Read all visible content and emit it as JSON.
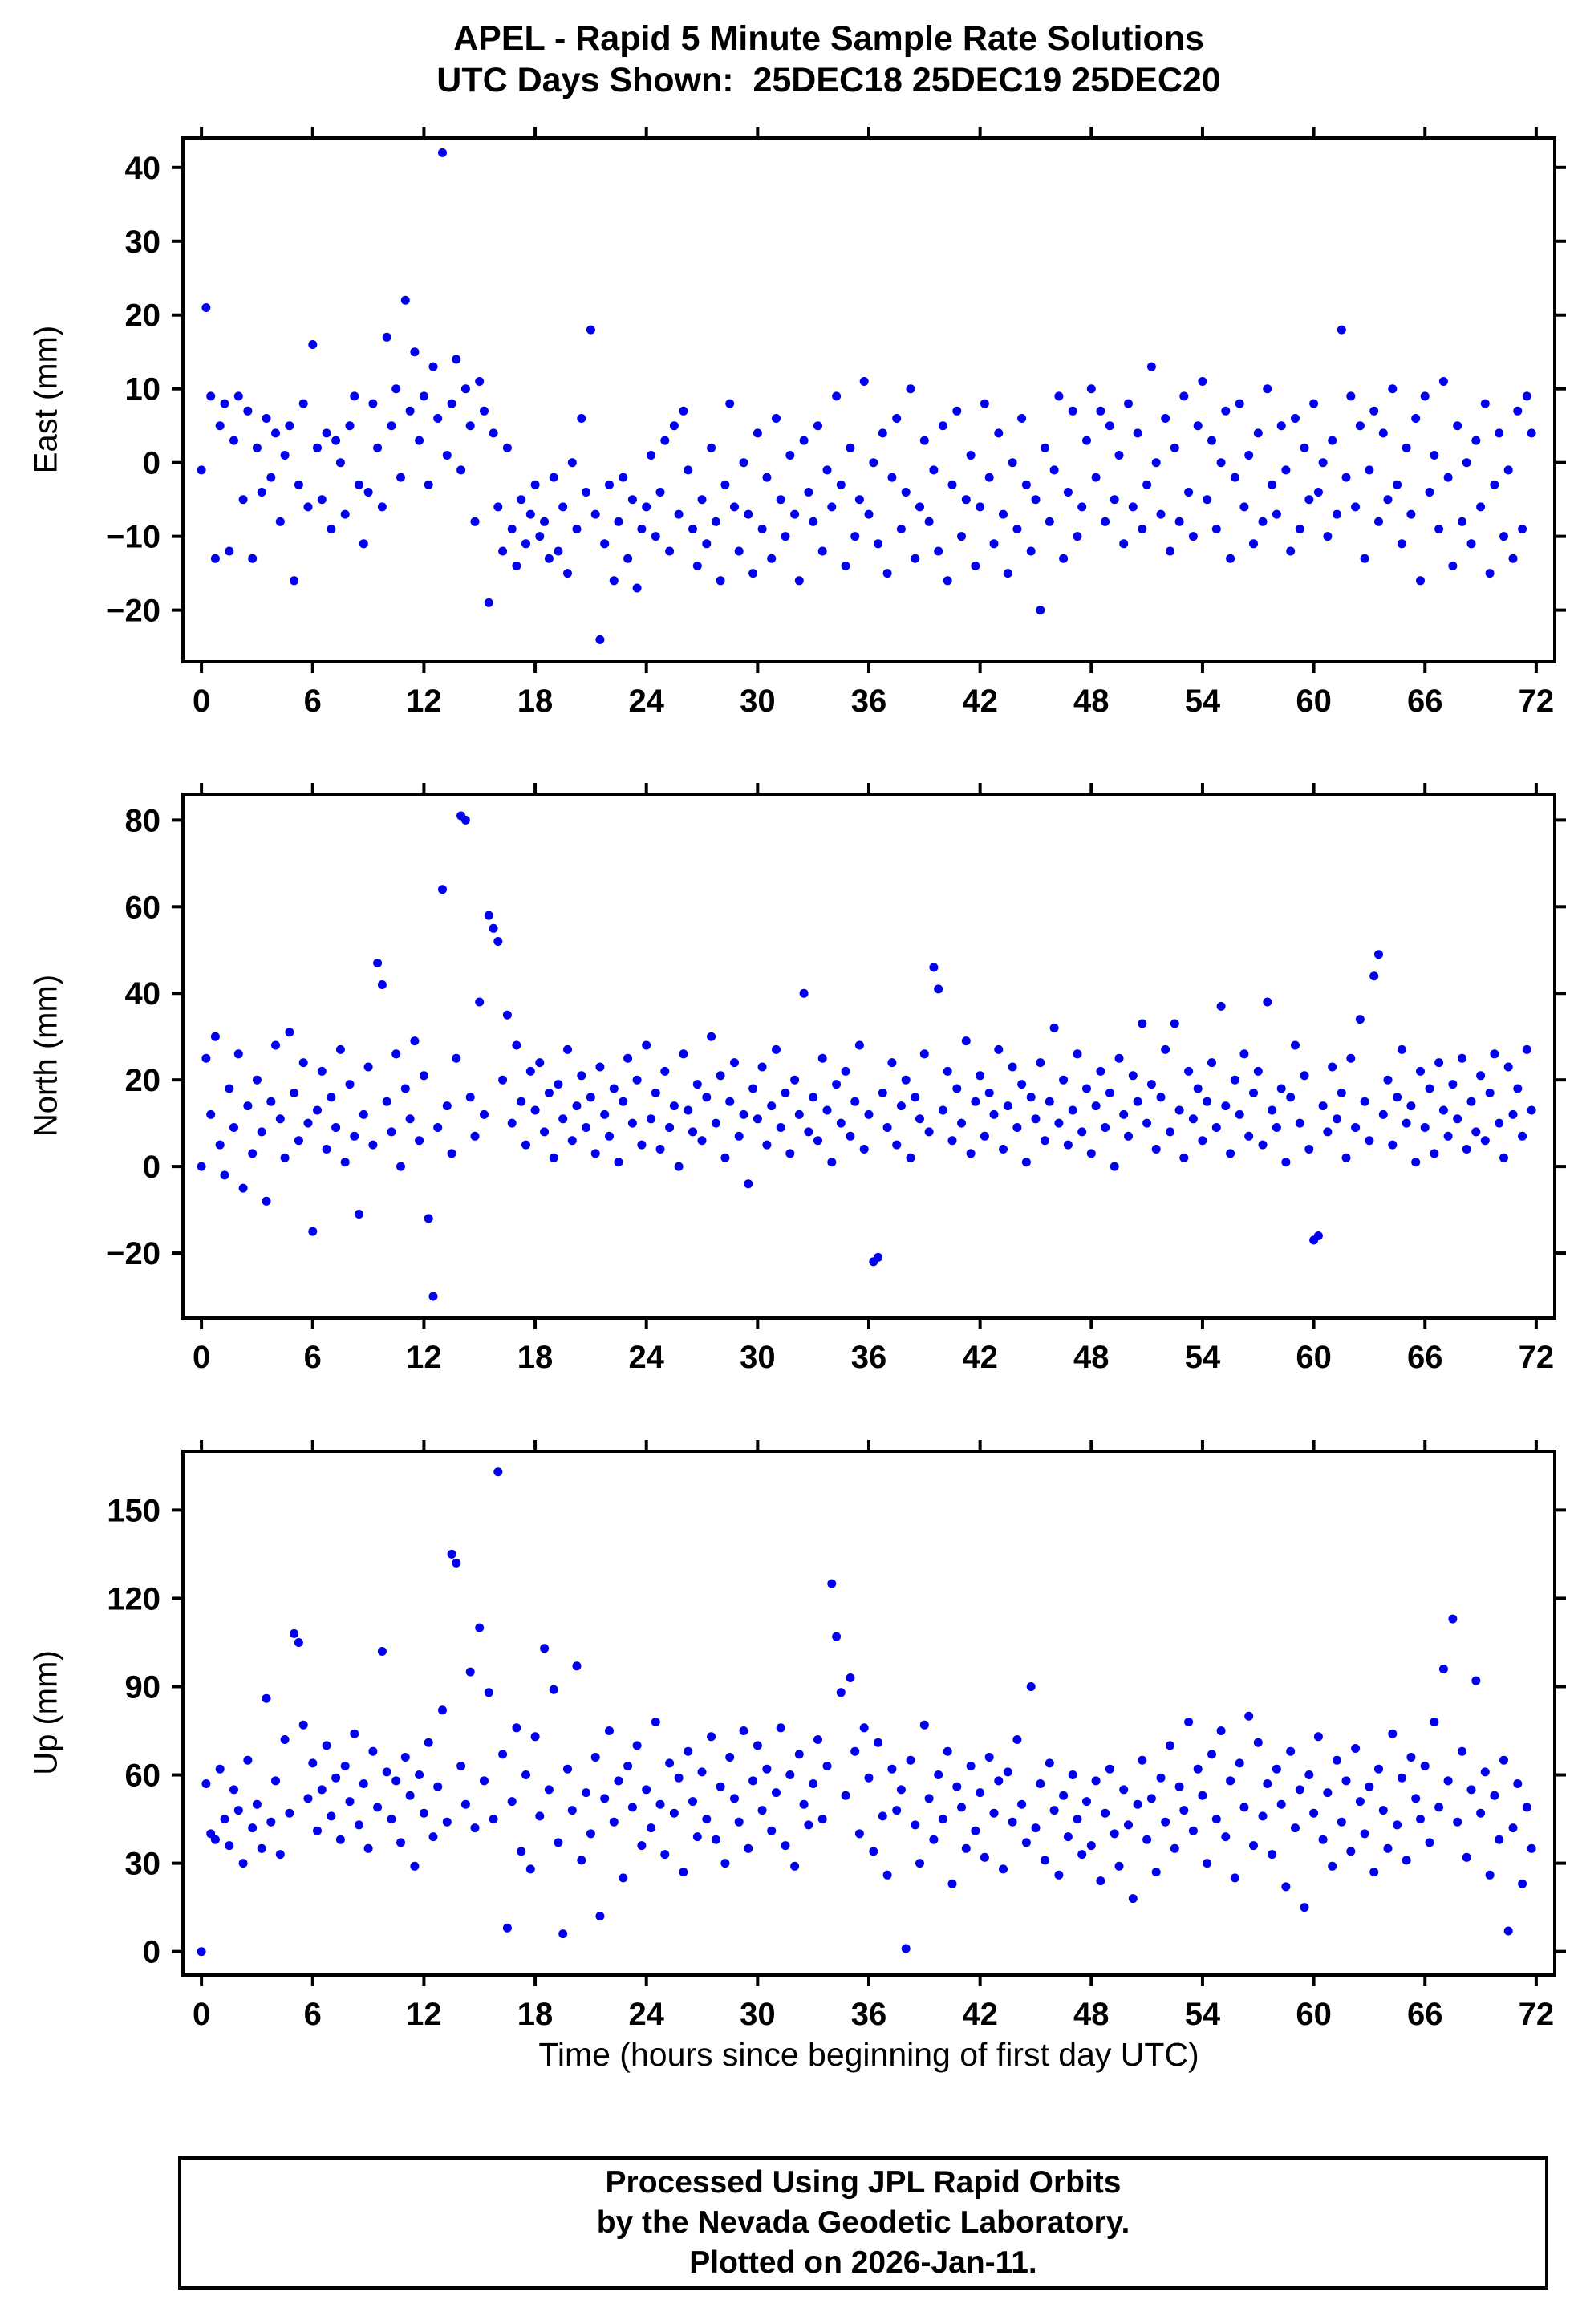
{
  "title": {
    "line1": "APEL - Rapid 5 Minute Sample Rate Solutions",
    "line2": "UTC Days Shown:  25DEC18 25DEC19 25DEC20"
  },
  "footer": {
    "lines": [
      "Processed Using JPL Rapid Orbits",
      "by the Nevada Geodetic Laboratory.",
      "Plotted on 2026-Jan-11."
    ]
  },
  "chart_data": {
    "type": "scatter",
    "title": "APEL - Rapid 5 Minute Sample Rate Solutions",
    "subtitle": "UTC Days Shown:  25DEC18 25DEC19 25DEC20",
    "xlabel": "Time (hours since beginning of first day UTC)",
    "point_color": "#0000ee",
    "grid": false,
    "legend": "none",
    "x": {
      "min": -1,
      "max": 73,
      "ticks": [
        0,
        6,
        12,
        18,
        24,
        30,
        36,
        42,
        48,
        54,
        60,
        66,
        72
      ]
    },
    "panels": [
      {
        "name": "east",
        "ylabel": "East (mm)",
        "ymin": -27,
        "ymax": 44,
        "yticks": [
          -20,
          -10,
          0,
          10,
          20,
          30,
          40
        ],
        "x_start": 0,
        "x_step": 0.25,
        "y": [
          -1,
          21,
          9,
          -13,
          5,
          8,
          -12,
          3,
          9,
          -5,
          7,
          -13,
          2,
          -4,
          6,
          -2,
          4,
          -8,
          1,
          5,
          -16,
          -3,
          8,
          -6,
          16,
          2,
          -5,
          4,
          -9,
          3,
          0,
          -7,
          5,
          9,
          -3,
          -11,
          -4,
          8,
          2,
          -6,
          17,
          5,
          10,
          -2,
          22,
          7,
          15,
          3,
          9,
          -3,
          13,
          6,
          42,
          1,
          8,
          14,
          -1,
          10,
          5,
          -8,
          11,
          7,
          -19,
          4,
          -6,
          -12,
          2,
          -9,
          -14,
          -5,
          -11,
          -7,
          -3,
          -10,
          -8,
          -13,
          -2,
          -12,
          -6,
          -15,
          0,
          -9,
          6,
          -4,
          18,
          -7,
          -24,
          -11,
          -3,
          -16,
          -8,
          -2,
          -13,
          -5,
          -17,
          -9,
          -6,
          1,
          -10,
          -4,
          3,
          -12,
          5,
          -7,
          7,
          -1,
          -9,
          -14,
          -5,
          -11,
          2,
          -8,
          -16,
          -3,
          8,
          -6,
          -12,
          0,
          -7,
          -15,
          4,
          -9,
          -2,
          -13,
          6,
          -5,
          -10,
          1,
          -7,
          -16,
          3,
          -4,
          -8,
          5,
          -12,
          -1,
          -6,
          9,
          -3,
          -14,
          2,
          -10,
          -5,
          11,
          -7,
          0,
          -11,
          4,
          -15,
          -2,
          6,
          -9,
          -4,
          10,
          -13,
          -6,
          3,
          -8,
          -1,
          -12,
          5,
          -16,
          -3,
          7,
          -10,
          -5,
          1,
          -14,
          -6,
          8,
          -2,
          -11,
          4,
          -7,
          -15,
          0,
          -9,
          6,
          -3,
          -12,
          -5,
          -20,
          2,
          -8,
          -1,
          9,
          -13,
          -4,
          7,
          -10,
          -6,
          3,
          10,
          -2,
          7,
          -8,
          5,
          -5,
          1,
          -11,
          8,
          -6,
          4,
          -9,
          -3,
          13,
          0,
          -7,
          6,
          -12,
          2,
          -8,
          9,
          -4,
          -10,
          5,
          11,
          -5,
          3,
          -9,
          0,
          7,
          -13,
          -2,
          8,
          -6,
          1,
          -11,
          4,
          -8,
          10,
          -3,
          -7,
          5,
          -1,
          -12,
          6,
          -9,
          2,
          -5,
          8,
          -4,
          0,
          -10,
          3,
          -7,
          18,
          -2,
          9,
          -6,
          5,
          -13,
          -1,
          7,
          -8,
          4,
          -5,
          10,
          -3,
          -11,
          2,
          -7,
          6,
          -16,
          9,
          -4,
          1,
          -9,
          11,
          -2,
          -14,
          5,
          -8,
          0,
          -11,
          3,
          -6,
          8,
          -15,
          -3,
          4,
          -10,
          -1,
          -13,
          7,
          -9,
          9,
          4
        ]
      },
      {
        "name": "north",
        "ylabel": "North (mm)",
        "ymin": -35,
        "ymax": 86,
        "yticks": [
          -20,
          0,
          20,
          40,
          60,
          80
        ],
        "x_start": 0,
        "x_step": 0.25,
        "y": [
          0,
          25,
          12,
          30,
          5,
          -2,
          18,
          9,
          26,
          -5,
          14,
          3,
          20,
          8,
          -8,
          15,
          28,
          11,
          2,
          31,
          17,
          6,
          24,
          10,
          -15,
          13,
          22,
          4,
          16,
          9,
          27,
          1,
          19,
          7,
          -11,
          12,
          23,
          5,
          47,
          42,
          15,
          8,
          26,
          0,
          18,
          11,
          29,
          6,
          21,
          -12,
          -30,
          9,
          64,
          14,
          3,
          25,
          81,
          80,
          16,
          7,
          38,
          12,
          58,
          55,
          52,
          20,
          35,
          10,
          28,
          15,
          5,
          22,
          13,
          24,
          8,
          17,
          2,
          19,
          11,
          27,
          6,
          14,
          21,
          9,
          16,
          3,
          23,
          12,
          7,
          18,
          1,
          15,
          25,
          10,
          20,
          5,
          28,
          11,
          17,
          4,
          22,
          9,
          14,
          0,
          26,
          13,
          8,
          19,
          6,
          16,
          30,
          10,
          21,
          2,
          15,
          24,
          7,
          12,
          -4,
          18,
          11,
          23,
          5,
          14,
          27,
          9,
          17,
          3,
          20,
          12,
          40,
          8,
          16,
          6,
          25,
          13,
          1,
          19,
          10,
          22,
          7,
          15,
          28,
          4,
          12,
          -22,
          -21,
          17,
          9,
          24,
          5,
          14,
          20,
          2,
          16,
          11,
          26,
          8,
          46,
          41,
          13,
          22,
          6,
          18,
          10,
          29,
          3,
          15,
          21,
          7,
          17,
          12,
          27,
          4,
          14,
          23,
          9,
          19,
          1,
          16,
          11,
          24,
          6,
          15,
          32,
          10,
          20,
          5,
          13,
          26,
          8,
          18,
          3,
          14,
          22,
          9,
          17,
          0,
          25,
          12,
          7,
          21,
          15,
          33,
          10,
          19,
          4,
          16,
          27,
          8,
          33,
          13,
          2,
          22,
          11,
          18,
          6,
          15,
          24,
          9,
          37,
          14,
          3,
          20,
          12,
          26,
          7,
          17,
          22,
          5,
          38,
          13,
          9,
          18,
          1,
          16,
          28,
          10,
          21,
          4,
          -17,
          -16,
          14,
          8,
          23,
          11,
          17,
          2,
          25,
          9,
          34,
          15,
          6,
          44,
          49,
          12,
          20,
          5,
          16,
          27,
          10,
          14,
          1,
          22,
          9,
          18,
          3,
          24,
          13,
          7,
          19,
          11,
          25,
          4,
          15,
          8,
          21,
          6,
          17,
          26,
          10,
          2,
          23,
          12,
          18,
          7,
          27,
          13
        ]
      },
      {
        "name": "up",
        "ylabel": "Up (mm)",
        "ymin": -8,
        "ymax": 170,
        "yticks": [
          0,
          30,
          60,
          90,
          120,
          150
        ],
        "x_start": 0,
        "x_step": 0.25,
        "y": [
          0,
          57,
          40,
          38,
          62,
          45,
          36,
          55,
          48,
          30,
          65,
          42,
          50,
          35,
          86,
          44,
          58,
          33,
          72,
          47,
          108,
          105,
          77,
          52,
          64,
          41,
          55,
          70,
          46,
          59,
          38,
          63,
          51,
          74,
          43,
          57,
          35,
          68,
          49,
          102,
          61,
          45,
          58,
          37,
          66,
          53,
          29,
          60,
          47,
          71,
          39,
          56,
          82,
          44,
          135,
          132,
          63,
          50,
          95,
          42,
          110,
          58,
          88,
          45,
          163,
          67,
          8,
          51,
          76,
          34,
          60,
          28,
          73,
          46,
          103,
          55,
          89,
          37,
          6,
          62,
          48,
          97,
          31,
          54,
          40,
          66,
          12,
          52,
          75,
          44,
          58,
          25,
          63,
          49,
          70,
          36,
          55,
          42,
          78,
          50,
          33,
          64,
          47,
          59,
          27,
          68,
          51,
          39,
          61,
          45,
          73,
          38,
          56,
          30,
          66,
          52,
          44,
          75,
          35,
          58,
          70,
          48,
          62,
          41,
          54,
          76,
          36,
          60,
          29,
          67,
          50,
          43,
          57,
          72,
          45,
          63,
          125,
          107,
          88,
          53,
          93,
          68,
          40,
          76,
          59,
          34,
          71,
          46,
          26,
          62,
          48,
          55,
          1,
          65,
          43,
          30,
          77,
          52,
          38,
          60,
          45,
          68,
          23,
          56,
          49,
          35,
          63,
          41,
          54,
          32,
          66,
          47,
          58,
          28,
          61,
          44,
          72,
          50,
          37,
          90,
          42,
          57,
          31,
          64,
          48,
          26,
          53,
          39,
          60,
          45,
          33,
          51,
          36,
          58,
          24,
          47,
          62,
          40,
          29,
          55,
          43,
          18,
          50,
          65,
          38,
          52,
          27,
          59,
          44,
          70,
          35,
          56,
          48,
          78,
          41,
          62,
          53,
          30,
          67,
          45,
          75,
          39,
          58,
          25,
          64,
          49,
          80,
          36,
          71,
          46,
          57,
          33,
          62,
          50,
          22,
          68,
          42,
          55,
          15,
          60,
          47,
          73,
          38,
          54,
          29,
          65,
          44,
          58,
          34,
          69,
          51,
          40,
          56,
          27,
          62,
          48,
          35,
          74,
          43,
          59,
          31,
          66,
          52,
          45,
          63,
          37,
          78,
          49,
          96,
          58,
          113,
          44,
          68,
          32,
          55,
          92,
          47,
          61,
          26,
          53,
          38,
          65,
          7,
          42,
          57,
          23,
          49,
          35
        ]
      }
    ]
  }
}
